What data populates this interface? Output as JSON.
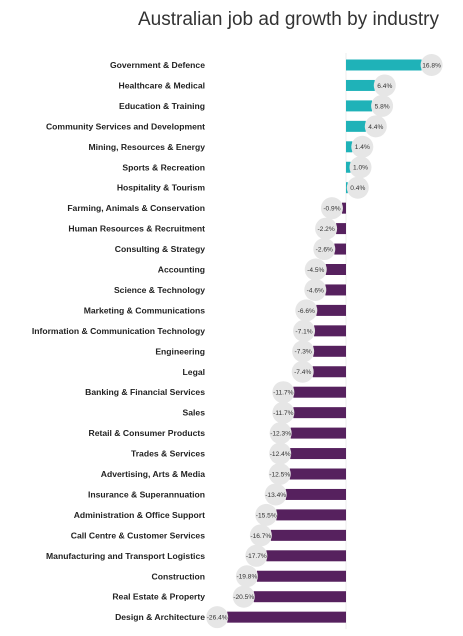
{
  "chart_data": {
    "type": "bar",
    "orientation": "horizontal",
    "title": "Australian job ad growth by industry",
    "categories": [
      "Government & Defence",
      "Healthcare & Medical",
      "Education & Training",
      "Community Services and Development",
      "Mining, Resources & Energy",
      "Sports & Recreation",
      "Hospitality & Tourism",
      "Farming, Animals & Conservation",
      "Human Resources & Recruitment",
      "Consulting & Strategy",
      "Accounting",
      "Science & Technology",
      "Marketing & Communications",
      "Information & Communication Technology",
      "Engineering",
      "Legal",
      "Banking & Financial Services",
      "Sales",
      "Retail & Consumer Products",
      "Trades & Services",
      "Advertising, Arts & Media",
      "Insurance & Superannuation",
      "Administration & Office Support",
      "Call Centre & Customer Services",
      "Manufacturing and Transport Logistics",
      "Construction",
      "Real Estate & Property",
      "Design & Architecture"
    ],
    "values": [
      16.8,
      6.4,
      5.8,
      4.4,
      1.4,
      1.0,
      0.4,
      -0.9,
      -2.2,
      -2.6,
      -4.5,
      -4.6,
      -6.6,
      -7.1,
      -7.3,
      -7.4,
      -11.7,
      -11.7,
      -12.3,
      -12.4,
      -12.5,
      -13.4,
      -15.5,
      -16.7,
      -17.7,
      -19.8,
      -20.5,
      -26.4
    ],
    "value_labels": [
      "16.8%",
      "6.4%",
      "5.8%",
      "4.4%",
      "1.4%",
      "1.0%",
      "0.4%",
      "-0.9%",
      "-2.2%",
      "-2.6%",
      "-4.5%",
      "-4.6%",
      "-6.6%",
      "-7.1%",
      "-7.3%",
      "-7.4%",
      "-11.7%",
      "-11.7%",
      "-12.3%",
      "-12.4%",
      "-12.5%",
      "-13.4%",
      "-15.5%",
      "-16.7%",
      "-17.7%",
      "-19.8%",
      "-20.5%",
      "-26.4%"
    ],
    "unit": "%",
    "xlim": [
      -26.4,
      16.8
    ],
    "grid": false,
    "legend": "none",
    "colors": {
      "positive": "#1fb2b8",
      "negative": "#56215e",
      "label_bubble": "#e6e6e6",
      "zero_line": "#eeeeee"
    }
  }
}
